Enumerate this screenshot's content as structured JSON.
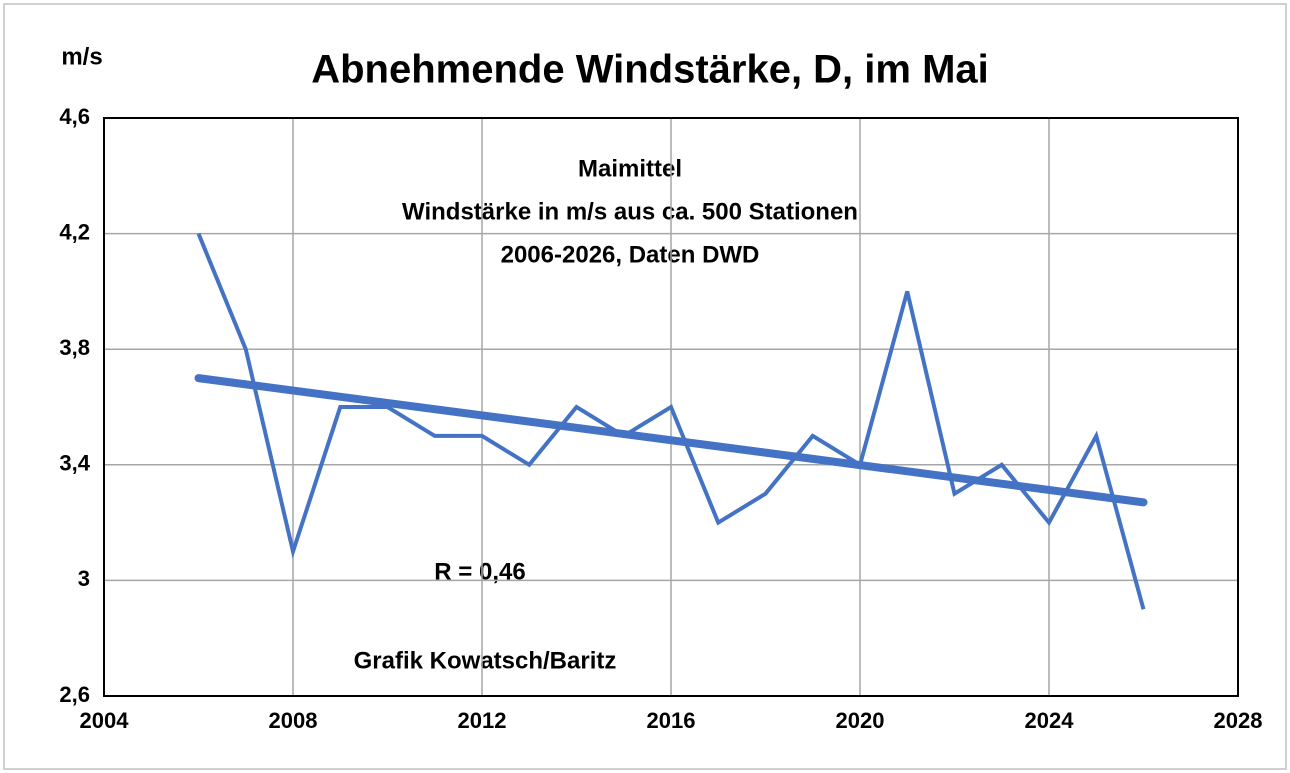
{
  "chart_data": {
    "type": "line",
    "title": "Abnehmende Windstärke, D, im Mai",
    "y_label": "m/s",
    "annotations": [
      "Maimittel",
      "Windstärke in m/s aus ca. 500 Stationen",
      "2006-2026, Daten DWD"
    ],
    "r_label": "R = 0,46",
    "credit": "Grafik Kowatsch/Baritz",
    "x": [
      2006,
      2007,
      2008,
      2009,
      2010,
      2011,
      2012,
      2013,
      2014,
      2015,
      2016,
      2017,
      2018,
      2019,
      2020,
      2021,
      2022,
      2023,
      2024,
      2025,
      2026
    ],
    "values": [
      4.2,
      3.8,
      3.1,
      3.6,
      3.6,
      3.5,
      3.5,
      3.4,
      3.6,
      3.5,
      3.6,
      3.2,
      3.3,
      3.5,
      3.4,
      4.0,
      3.3,
      3.4,
      3.2,
      3.5,
      2.9
    ],
    "color": "#4472c4",
    "trendline": {
      "x": [
        2006,
        2026
      ],
      "values": [
        3.7,
        3.27
      ]
    },
    "xlim": [
      2004,
      2028
    ],
    "xticks": [
      2004,
      2008,
      2012,
      2016,
      2020,
      2024,
      2028
    ],
    "ylim": [
      2.6,
      4.6
    ],
    "yticks": [
      {
        "value": 2.6,
        "label": "2,6"
      },
      3,
      {
        "value": 3.4,
        "label": "3,4"
      },
      {
        "value": 3.8,
        "label": "3,8"
      },
      {
        "value": 4.2,
        "label": "4,2"
      },
      {
        "value": 4.6,
        "label": "4,6"
      }
    ],
    "grid": true
  }
}
